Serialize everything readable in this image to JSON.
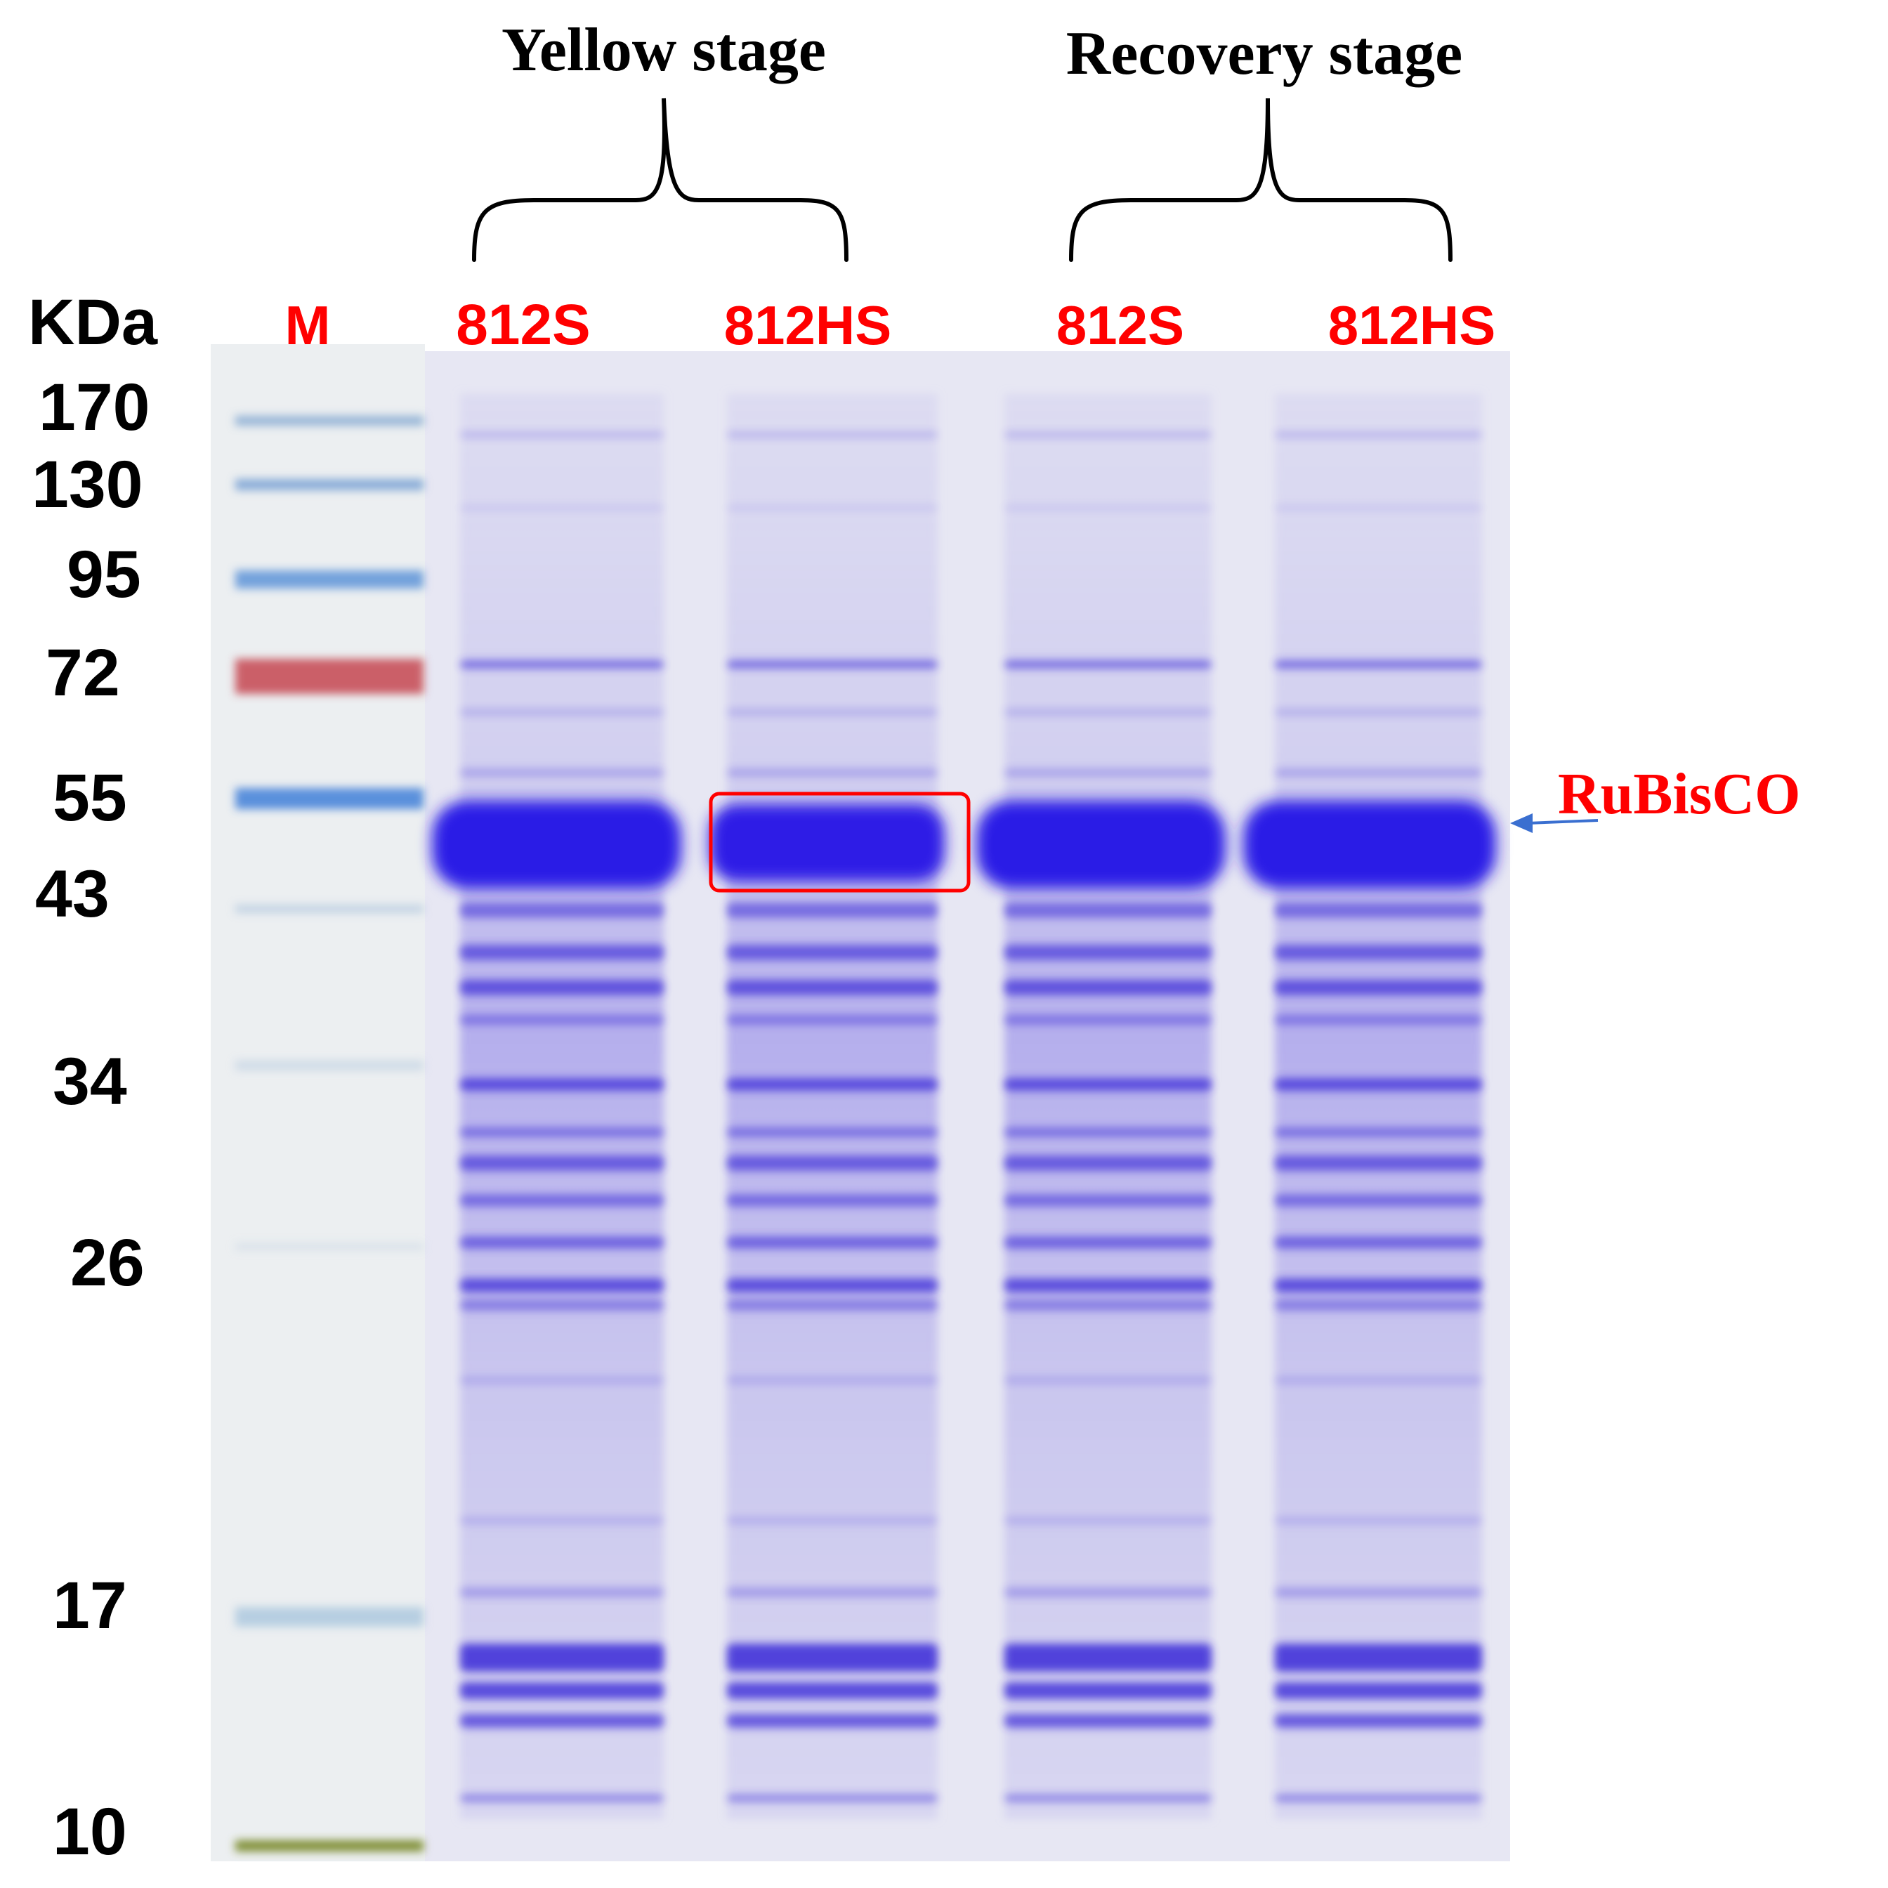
{
  "stage_headers": [
    {
      "text": "Yellow stage"
    },
    {
      "text": "Recovery stage"
    }
  ],
  "unit_label": "KDa",
  "lanes": [
    {
      "label": "M"
    },
    {
      "label": "812S"
    },
    {
      "label": "812HS"
    },
    {
      "label": "812S"
    },
    {
      "label": "812HS"
    }
  ],
  "marker_sizes": [
    "170",
    "130",
    "95",
    "72",
    "55",
    "43",
    "34",
    "26",
    "17",
    "10"
  ],
  "annotation": {
    "text": "RuBisCO"
  },
  "colors": {
    "gel_background": "#e6e6f2",
    "marker_lane_background": "#eef0f2",
    "coomassie_band": "#2d1ee6",
    "marker_blue": "#6a9fd8",
    "marker_red": "#c8505a",
    "marker_green": "#7a8a2a",
    "label_red": "#ff0000",
    "label_black": "#000000",
    "arrow_blue": "#3a6fd0"
  }
}
